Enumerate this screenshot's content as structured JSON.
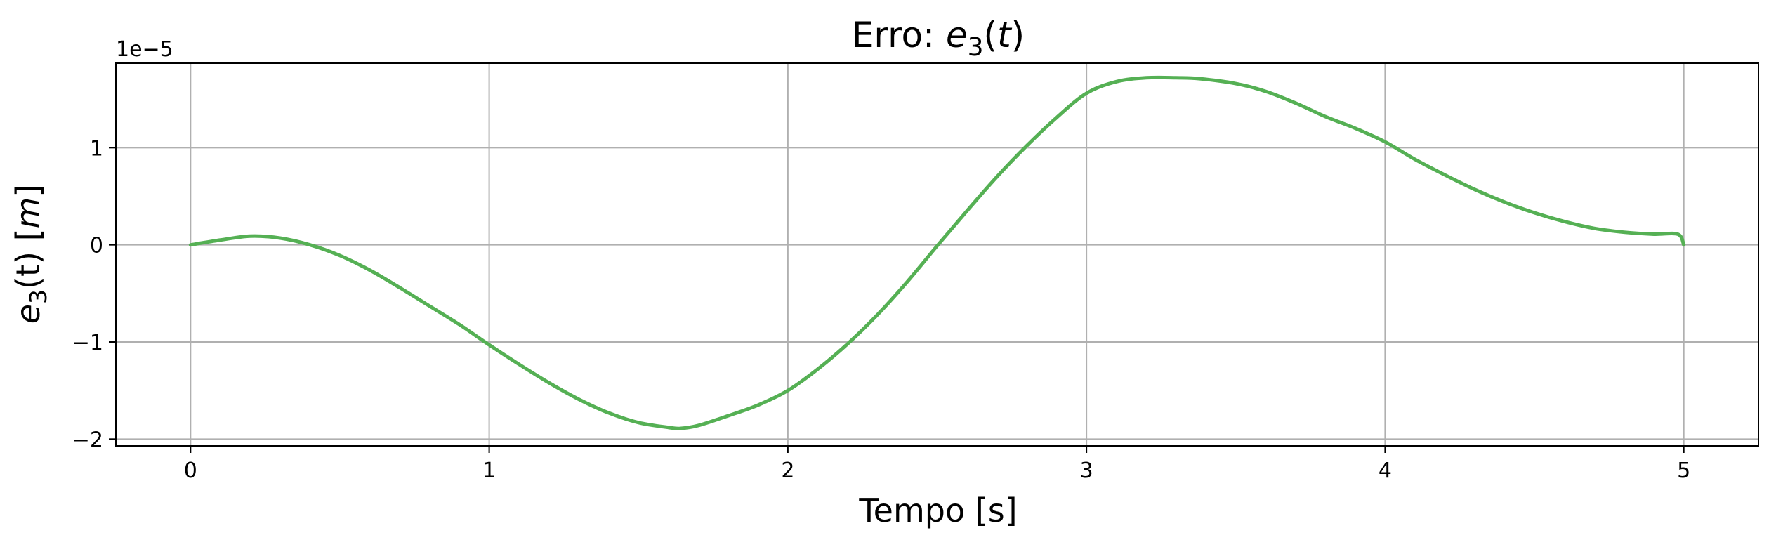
{
  "chart_data": {
    "type": "line",
    "title": {
      "prefix": "Erro: ",
      "var": "e",
      "sub": "3",
      "suffix": "(t)"
    },
    "xlabel": "Tempo [s]",
    "ylabel": {
      "var": "e",
      "sub": "3",
      "mid": "(t) [",
      "unit": "m",
      "end": "]"
    },
    "y_offset_label": "1e−5",
    "xlim": [
      -0.25,
      5.25
    ],
    "ylim": [
      -2.07,
      1.87
    ],
    "x_ticks": [
      0,
      1,
      2,
      3,
      4,
      5
    ],
    "x_tick_labels": [
      "0",
      "1",
      "2",
      "3",
      "4",
      "5"
    ],
    "y_ticks": [
      -2,
      -1,
      0,
      1
    ],
    "y_tick_labels": [
      "−2",
      "−1",
      "0",
      "1"
    ],
    "grid": true,
    "series": [
      {
        "color": "#55b054",
        "x": [
          0.0,
          0.1,
          0.2,
          0.3,
          0.4,
          0.5,
          0.6,
          0.7,
          0.8,
          0.9,
          1.0,
          1.1,
          1.2,
          1.3,
          1.4,
          1.5,
          1.6,
          1.64,
          1.7,
          1.8,
          1.9,
          2.0,
          2.1,
          2.2,
          2.3,
          2.4,
          2.5,
          2.6,
          2.7,
          2.8,
          2.9,
          3.0,
          3.1,
          3.2,
          3.3,
          3.38,
          3.5,
          3.6,
          3.7,
          3.8,
          3.9,
          4.0,
          4.1,
          4.2,
          4.3,
          4.4,
          4.5,
          4.6,
          4.7,
          4.8,
          4.9,
          4.98,
          5.0
        ],
        "y": [
          0.0,
          0.05,
          0.09,
          0.07,
          0.0,
          -0.11,
          -0.26,
          -0.44,
          -0.63,
          -0.82,
          -1.03,
          -1.23,
          -1.42,
          -1.59,
          -1.73,
          -1.83,
          -1.88,
          -1.89,
          -1.86,
          -1.76,
          -1.65,
          -1.5,
          -1.28,
          -1.02,
          -0.72,
          -0.38,
          -0.01,
          0.35,
          0.7,
          1.02,
          1.31,
          1.56,
          1.68,
          1.72,
          1.72,
          1.71,
          1.66,
          1.58,
          1.46,
          1.32,
          1.2,
          1.06,
          0.88,
          0.72,
          0.57,
          0.44,
          0.33,
          0.24,
          0.17,
          0.13,
          0.11,
          0.11,
          0.0
        ]
      }
    ]
  }
}
